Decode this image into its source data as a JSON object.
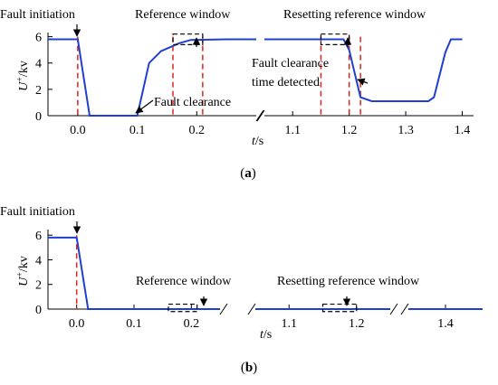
{
  "chart_data": [
    {
      "id": "a",
      "type": "line",
      "caption": "a",
      "ylabel_main": "U",
      "ylabel_sup": "+",
      "ylabel_unit": "/kv",
      "xlabel": "t/s",
      "ylim": [
        0,
        6
      ],
      "y_ticks": [
        0,
        2,
        4,
        6
      ],
      "segments": [
        {
          "xlim": [
            -0.05,
            0.3
          ],
          "x_ticks": [
            0.0,
            0.1,
            0.2
          ]
        },
        {
          "xlim": [
            1.05,
            1.42
          ],
          "x_ticks": [
            1.1,
            1.2,
            1.3,
            1.4
          ]
        }
      ],
      "series": [
        {
          "color": "#1f3fd0",
          "points": [
            [
              -0.05,
              5.8
            ],
            [
              0.0,
              5.8
            ],
            [
              0.02,
              0.0
            ],
            [
              0.1,
              0.0
            ],
            [
              0.12,
              4.0
            ],
            [
              0.14,
              4.9
            ],
            [
              0.17,
              5.5
            ],
            [
              0.19,
              5.75
            ],
            [
              0.25,
              5.8
            ],
            [
              0.3,
              5.8
            ],
            [
              1.05,
              5.8
            ],
            [
              1.19,
              5.8
            ],
            [
              1.2,
              5.0
            ],
            [
              1.22,
              1.4
            ],
            [
              1.24,
              1.1
            ],
            [
              1.34,
              1.1
            ],
            [
              1.35,
              1.4
            ],
            [
              1.37,
              4.8
            ],
            [
              1.38,
              5.8
            ],
            [
              1.4,
              5.8
            ]
          ]
        }
      ],
      "red_dashed_x": [
        0.0,
        0.16,
        0.21,
        1.15,
        1.2,
        1.22
      ],
      "windows": [
        {
          "x": [
            0.16,
            0.21
          ],
          "y": [
            5.4,
            6.2
          ]
        },
        {
          "x": [
            1.15,
            1.2
          ],
          "y": [
            5.4,
            6.2
          ]
        }
      ],
      "annotations": [
        {
          "text": "Fault initiation"
        },
        {
          "text": "Reference window"
        },
        {
          "text": "Resetting reference window"
        },
        {
          "text": "Fault clearance"
        },
        {
          "text": "Fault clearance"
        },
        {
          "text": "time detected"
        }
      ]
    },
    {
      "id": "b",
      "type": "line",
      "caption": "b",
      "ylabel_main": "U",
      "ylabel_sup": "+",
      "ylabel_unit": "/kv",
      "xlabel": "t/s",
      "ylim": [
        0,
        6
      ],
      "y_ticks": [
        0,
        2,
        4,
        6
      ],
      "segments": [
        {
          "xlim": [
            -0.05,
            0.25
          ],
          "x_ticks": [
            0.0,
            0.1,
            0.2
          ]
        },
        {
          "xlim": [
            1.05,
            1.25
          ],
          "x_ticks": [
            1.1,
            1.2
          ]
        },
        {
          "xlim": [
            1.38,
            1.42
          ],
          "x_ticks": [
            1.4
          ]
        }
      ],
      "series": [
        {
          "color": "#1f3fd0",
          "points": [
            [
              -0.05,
              5.8
            ],
            [
              0.0,
              5.8
            ],
            [
              0.02,
              0.0
            ],
            [
              0.25,
              0.0
            ],
            [
              1.05,
              0.0
            ],
            [
              1.25,
              0.0
            ],
            [
              1.38,
              0.0
            ],
            [
              1.42,
              0.0
            ]
          ]
        }
      ],
      "red_dashed_x": [
        0.0
      ],
      "windows": [
        {
          "x": [
            0.16,
            0.21
          ],
          "y": [
            -0.2,
            0.4
          ]
        },
        {
          "x": [
            1.15,
            1.2
          ],
          "y": [
            -0.2,
            0.4
          ]
        }
      ],
      "annotations": [
        {
          "text": "Fault initiation"
        },
        {
          "text": "Reference window"
        },
        {
          "text": "Resetting reference window"
        }
      ]
    }
  ]
}
